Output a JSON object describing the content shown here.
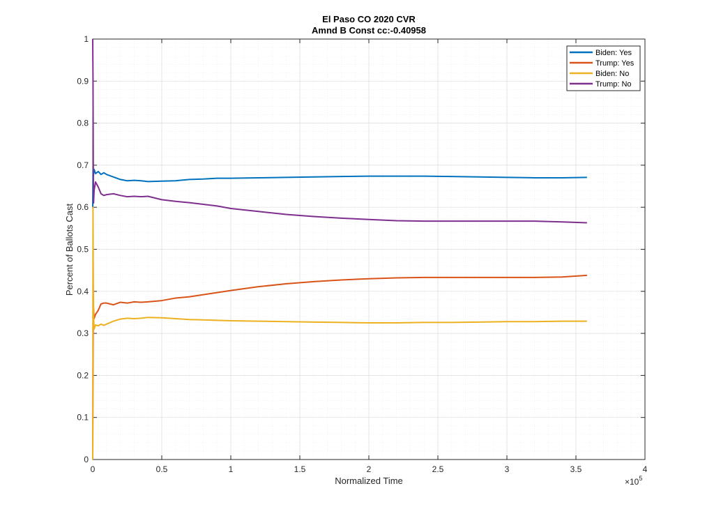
{
  "chart_data": {
    "type": "line",
    "title": "El Paso CO 2020 CVR",
    "subtitle": "Amnd B Const cc:-0.40958",
    "xlabel": "Normalized Time",
    "ylabel": "Percent of Ballots Cast",
    "x_exponent_label": "×10",
    "x_exponent": "5",
    "xlim": [
      0,
      4
    ],
    "ylim": [
      0,
      1
    ],
    "xticks": [
      0,
      0.5,
      1,
      1.5,
      2,
      2.5,
      3,
      3.5,
      4
    ],
    "xtick_labels": [
      "0",
      "0.5",
      "1",
      "1.5",
      "2",
      "2.5",
      "3",
      "3.5",
      "4"
    ],
    "yticks": [
      0,
      0.1,
      0.2,
      0.3,
      0.4,
      0.5,
      0.6,
      0.7,
      0.8,
      0.9,
      1
    ],
    "ytick_labels": [
      "0",
      "0.1",
      "0.2",
      "0.3",
      "0.4",
      "0.5",
      "0.6",
      "0.7",
      "0.8",
      "0.9",
      "1"
    ],
    "grid": true,
    "legend_position": "top-right",
    "series": [
      {
        "name": "Biden: Yes",
        "color": "#0072BD",
        "points": [
          [
            0,
            0.6
          ],
          [
            0.002,
            0.69
          ],
          [
            0.005,
            0.675
          ],
          [
            0.01,
            0.69
          ],
          [
            0.02,
            0.68
          ],
          [
            0.04,
            0.685
          ],
          [
            0.06,
            0.678
          ],
          [
            0.08,
            0.682
          ],
          [
            0.1,
            0.678
          ],
          [
            0.15,
            0.672
          ],
          [
            0.2,
            0.666
          ],
          [
            0.25,
            0.663
          ],
          [
            0.3,
            0.664
          ],
          [
            0.35,
            0.663
          ],
          [
            0.4,
            0.661
          ],
          [
            0.5,
            0.662
          ],
          [
            0.6,
            0.663
          ],
          [
            0.7,
            0.666
          ],
          [
            0.8,
            0.667
          ],
          [
            0.9,
            0.669
          ],
          [
            1.0,
            0.669
          ],
          [
            1.2,
            0.67
          ],
          [
            1.4,
            0.671
          ],
          [
            1.6,
            0.672
          ],
          [
            1.8,
            0.673
          ],
          [
            2.0,
            0.674
          ],
          [
            2.2,
            0.674
          ],
          [
            2.4,
            0.674
          ],
          [
            2.6,
            0.673
          ],
          [
            2.8,
            0.672
          ],
          [
            3.0,
            0.671
          ],
          [
            3.2,
            0.67
          ],
          [
            3.4,
            0.67
          ],
          [
            3.58,
            0.671
          ]
        ]
      },
      {
        "name": "Trump: Yes",
        "color": "#D95319",
        "points": [
          [
            0,
            0.0
          ],
          [
            0.003,
            0.3
          ],
          [
            0.006,
            0.36
          ],
          [
            0.01,
            0.335
          ],
          [
            0.02,
            0.345
          ],
          [
            0.04,
            0.355
          ],
          [
            0.06,
            0.37
          ],
          [
            0.08,
            0.372
          ],
          [
            0.1,
            0.372
          ],
          [
            0.15,
            0.368
          ],
          [
            0.2,
            0.374
          ],
          [
            0.25,
            0.372
          ],
          [
            0.3,
            0.375
          ],
          [
            0.35,
            0.374
          ],
          [
            0.4,
            0.375
          ],
          [
            0.5,
            0.378
          ],
          [
            0.6,
            0.384
          ],
          [
            0.7,
            0.387
          ],
          [
            0.8,
            0.392
          ],
          [
            0.9,
            0.397
          ],
          [
            1.0,
            0.402
          ],
          [
            1.2,
            0.411
          ],
          [
            1.4,
            0.418
          ],
          [
            1.6,
            0.423
          ],
          [
            1.8,
            0.427
          ],
          [
            2.0,
            0.43
          ],
          [
            2.2,
            0.432
          ],
          [
            2.4,
            0.433
          ],
          [
            2.6,
            0.433
          ],
          [
            2.8,
            0.433
          ],
          [
            3.0,
            0.433
          ],
          [
            3.2,
            0.433
          ],
          [
            3.4,
            0.434
          ],
          [
            3.58,
            0.438
          ]
        ]
      },
      {
        "name": "Biden: No",
        "color": "#EDB120",
        "points": [
          [
            0,
            0.0
          ],
          [
            0.002,
            0.6
          ],
          [
            0.004,
            0.42
          ],
          [
            0.007,
            0.33
          ],
          [
            0.01,
            0.31
          ],
          [
            0.02,
            0.32
          ],
          [
            0.04,
            0.318
          ],
          [
            0.06,
            0.322
          ],
          [
            0.08,
            0.319
          ],
          [
            0.1,
            0.322
          ],
          [
            0.15,
            0.329
          ],
          [
            0.2,
            0.334
          ],
          [
            0.25,
            0.336
          ],
          [
            0.3,
            0.335
          ],
          [
            0.35,
            0.336
          ],
          [
            0.4,
            0.338
          ],
          [
            0.5,
            0.337
          ],
          [
            0.6,
            0.335
          ],
          [
            0.7,
            0.333
          ],
          [
            0.8,
            0.332
          ],
          [
            0.9,
            0.331
          ],
          [
            1.0,
            0.33
          ],
          [
            1.2,
            0.329
          ],
          [
            1.4,
            0.328
          ],
          [
            1.6,
            0.327
          ],
          [
            1.8,
            0.326
          ],
          [
            2.0,
            0.325
          ],
          [
            2.2,
            0.325
          ],
          [
            2.4,
            0.326
          ],
          [
            2.6,
            0.326
          ],
          [
            2.8,
            0.327
          ],
          [
            3.0,
            0.328
          ],
          [
            3.2,
            0.328
          ],
          [
            3.4,
            0.329
          ],
          [
            3.58,
            0.329
          ]
        ]
      },
      {
        "name": "Trump: No",
        "color": "#7E2F8E",
        "points": [
          [
            0,
            1.0
          ],
          [
            0.002,
            0.9
          ],
          [
            0.004,
            0.7
          ],
          [
            0.006,
            0.61
          ],
          [
            0.01,
            0.64
          ],
          [
            0.02,
            0.66
          ],
          [
            0.04,
            0.648
          ],
          [
            0.06,
            0.632
          ],
          [
            0.08,
            0.628
          ],
          [
            0.1,
            0.63
          ],
          [
            0.15,
            0.632
          ],
          [
            0.2,
            0.628
          ],
          [
            0.25,
            0.625
          ],
          [
            0.3,
            0.626
          ],
          [
            0.35,
            0.625
          ],
          [
            0.4,
            0.626
          ],
          [
            0.5,
            0.618
          ],
          [
            0.6,
            0.614
          ],
          [
            0.7,
            0.611
          ],
          [
            0.8,
            0.607
          ],
          [
            0.9,
            0.603
          ],
          [
            1.0,
            0.597
          ],
          [
            1.2,
            0.59
          ],
          [
            1.4,
            0.583
          ],
          [
            1.6,
            0.578
          ],
          [
            1.8,
            0.574
          ],
          [
            2.0,
            0.571
          ],
          [
            2.2,
            0.568
          ],
          [
            2.4,
            0.567
          ],
          [
            2.6,
            0.567
          ],
          [
            2.8,
            0.567
          ],
          [
            3.0,
            0.567
          ],
          [
            3.2,
            0.567
          ],
          [
            3.4,
            0.565
          ],
          [
            3.58,
            0.563
          ]
        ]
      }
    ]
  }
}
